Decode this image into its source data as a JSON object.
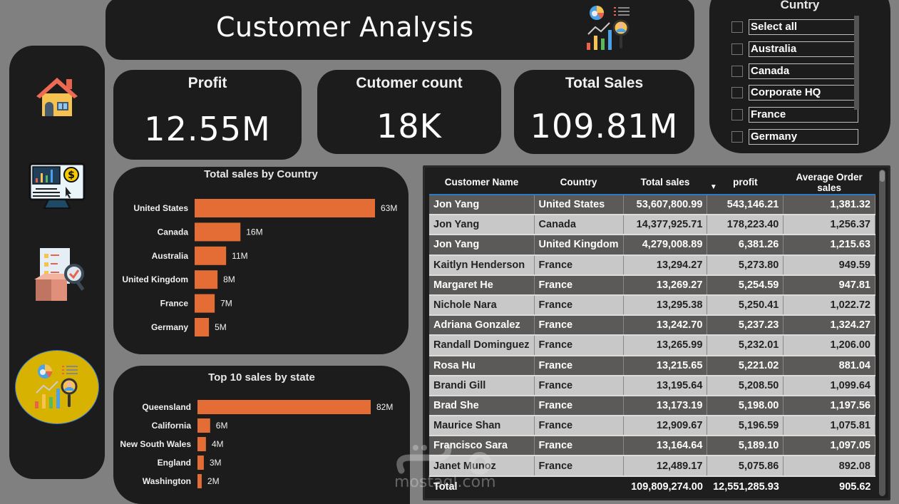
{
  "header": {
    "title": "Customer Analysis",
    "logo_icon": "customer-analytics-icon"
  },
  "sidebar": {
    "items": [
      {
        "name": "home",
        "icon": "house-icon"
      },
      {
        "name": "sales",
        "icon": "sales-dashboard-monitor-icon"
      },
      {
        "name": "products",
        "icon": "product-inspection-icon"
      },
      {
        "name": "customers",
        "icon": "customer-analytics-icon",
        "active": true
      }
    ]
  },
  "kpis": {
    "profit": {
      "label": "Profit",
      "value": "12.55M"
    },
    "customers": {
      "label": "Cutomer count",
      "value": "18K"
    },
    "sales": {
      "label": "Total Sales",
      "value": "109.81M"
    }
  },
  "slicer": {
    "title": "Cuntry",
    "items": [
      "Select all",
      "Australia",
      "Canada",
      "Corporate HQ",
      "France",
      "Germany"
    ]
  },
  "colors": {
    "bar": "#e46c35",
    "panel": "#1c1c1c",
    "background": "#808080",
    "accent_blue": "#2b78c5"
  },
  "chart_data": [
    {
      "type": "bar",
      "orientation": "horizontal",
      "title": "Total sales by Country",
      "categories": [
        "United States",
        "Canada",
        "Australia",
        "United Kingdom",
        "France",
        "Germany"
      ],
      "values": [
        63,
        16,
        11,
        8,
        7,
        5
      ],
      "labels": [
        "63M",
        "16M",
        "11M",
        "8M",
        "7M",
        "5M"
      ],
      "unit": "M",
      "xlabel": "",
      "ylabel": "",
      "grid": false
    },
    {
      "type": "bar",
      "orientation": "horizontal",
      "title": "Top 10 sales by state",
      "categories": [
        "Queensland",
        "California",
        "New South Wales",
        "England",
        "Washington"
      ],
      "values": [
        82,
        6,
        4,
        3,
        2
      ],
      "labels": [
        "82M",
        "6M",
        "4M",
        "3M",
        "2M"
      ],
      "unit": "M",
      "xlabel": "",
      "ylabel": "",
      "grid": false
    }
  ],
  "table": {
    "columns": [
      "Customer Name",
      "Country",
      "Total sales",
      "profit",
      "Average Order sales"
    ],
    "sorted_column": "profit",
    "rows": [
      [
        "Jon Yang",
        "United States",
        "53,607,800.99",
        "543,146.21",
        "1,381.32"
      ],
      [
        "Jon Yang",
        "Canada",
        "14,377,925.71",
        "178,223.40",
        "1,256.37"
      ],
      [
        "Jon Yang",
        "United Kingdom",
        "4,279,008.89",
        "6,381.26",
        "1,215.63"
      ],
      [
        "Kaitlyn Henderson",
        "France",
        "13,294.27",
        "5,273.80",
        "949.59"
      ],
      [
        "Margaret He",
        "France",
        "13,269.27",
        "5,254.59",
        "947.81"
      ],
      [
        "Nichole Nara",
        "France",
        "13,295.38",
        "5,250.41",
        "1,022.72"
      ],
      [
        "Adriana Gonzalez",
        "France",
        "13,242.70",
        "5,237.23",
        "1,324.27"
      ],
      [
        "Randall Dominguez",
        "France",
        "13,265.99",
        "5,232.01",
        "1,206.00"
      ],
      [
        "Rosa Hu",
        "France",
        "13,215.65",
        "5,221.02",
        "881.04"
      ],
      [
        "Brandi Gill",
        "France",
        "13,195.64",
        "5,208.50",
        "1,099.64"
      ],
      [
        "Brad She",
        "France",
        "13,173.19",
        "5,198.00",
        "1,197.56"
      ],
      [
        "Maurice Shan",
        "France",
        "12,909.67",
        "5,196.59",
        "1,075.81"
      ],
      [
        "Francisco Sara",
        "France",
        "13,164.64",
        "5,189.10",
        "1,097.05"
      ],
      [
        "Janet Munoz",
        "France",
        "12,489.17",
        "5,075.86",
        "892.08"
      ]
    ],
    "total": [
      "Total",
      "",
      "109,809,274.00",
      "12,551,285.93",
      "905.62"
    ]
  },
  "watermark": {
    "text": "mostaql.com"
  }
}
